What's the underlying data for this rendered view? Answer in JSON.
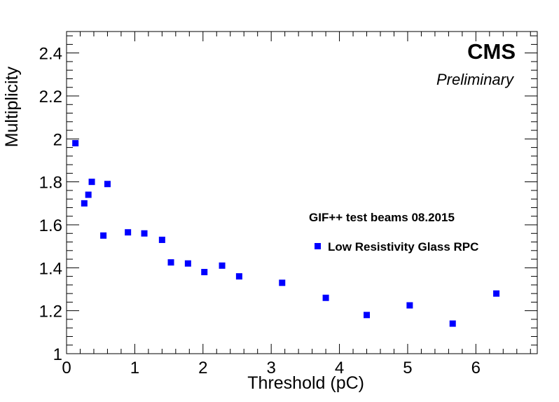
{
  "chart_data": {
    "type": "scatter",
    "xlabel": "Threshold (pC)",
    "ylabel": "Multiplicity",
    "xlim": [
      0,
      6.9
    ],
    "ylim": [
      1,
      2.5
    ],
    "x_ticks": [
      0,
      1,
      2,
      3,
      4,
      5,
      6
    ],
    "x_tick_labels": [
      "0",
      "1",
      "2",
      "3",
      "4",
      "5",
      "6"
    ],
    "y_ticks": [
      1,
      1.2,
      1.4,
      1.6,
      1.8,
      2,
      2.2,
      2.4
    ],
    "y_tick_labels": [
      "1",
      "1.2",
      "1.4",
      "1.6",
      "1.8",
      "2",
      "2.2",
      "2.4"
    ],
    "grid": false,
    "legend_position": "center-right",
    "annotations": {
      "experiment": "CMS",
      "status": "Preliminary",
      "legend_header": "GIF++ test beams 08.2015"
    },
    "series": [
      {
        "name": "Low Resistivity Glass RPC",
        "color": "#0000ff",
        "marker": "square",
        "points": [
          {
            "x": 0.13,
            "y": 1.98
          },
          {
            "x": 0.26,
            "y": 1.7
          },
          {
            "x": 0.32,
            "y": 1.74
          },
          {
            "x": 0.37,
            "y": 1.8
          },
          {
            "x": 0.54,
            "y": 1.55
          },
          {
            "x": 0.6,
            "y": 1.79
          },
          {
            "x": 0.9,
            "y": 1.565
          },
          {
            "x": 1.14,
            "y": 1.56
          },
          {
            "x": 1.4,
            "y": 1.53
          },
          {
            "x": 1.53,
            "y": 1.425
          },
          {
            "x": 1.78,
            "y": 1.42
          },
          {
            "x": 2.02,
            "y": 1.38
          },
          {
            "x": 2.28,
            "y": 1.41
          },
          {
            "x": 2.53,
            "y": 1.36
          },
          {
            "x": 3.16,
            "y": 1.33
          },
          {
            "x": 3.8,
            "y": 1.26
          },
          {
            "x": 4.4,
            "y": 1.18
          },
          {
            "x": 5.03,
            "y": 1.225
          },
          {
            "x": 5.66,
            "y": 1.14
          },
          {
            "x": 6.3,
            "y": 1.28
          }
        ]
      }
    ]
  }
}
